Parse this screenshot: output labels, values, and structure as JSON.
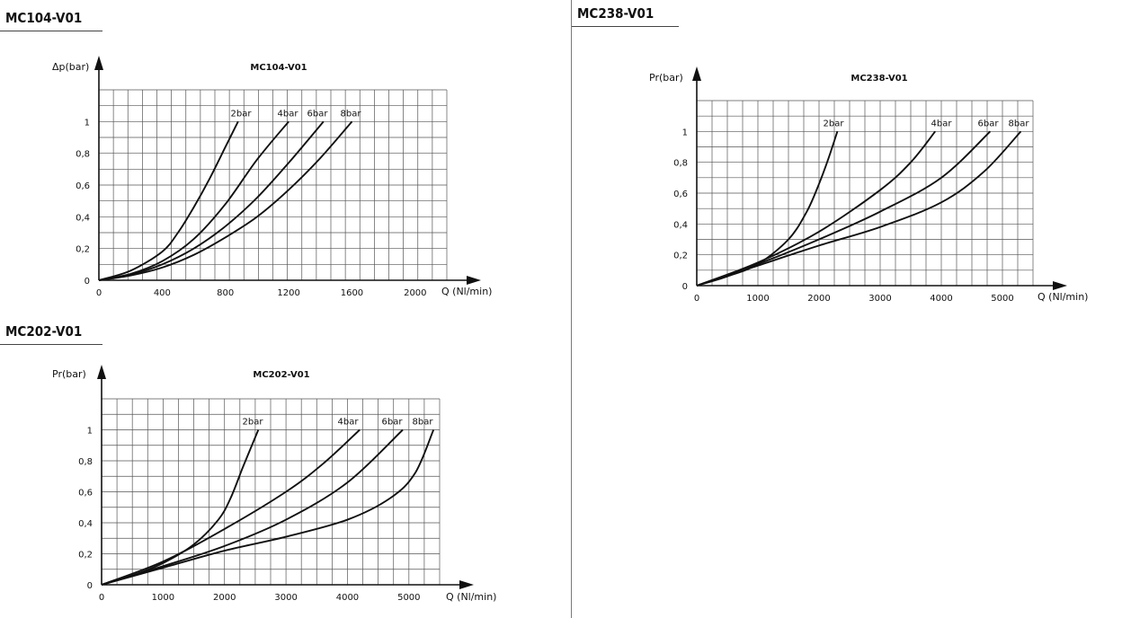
{
  "sections": [
    {
      "label": "MC104-V01"
    },
    {
      "label": "MC202-V01"
    },
    {
      "label": "MC238-V01"
    }
  ],
  "chart_data": [
    {
      "type": "line",
      "title": "MC104-V01",
      "xlabel": "Q (Nl/min)",
      "ylabel": "Δp(bar)",
      "xlim": [
        0,
        2200
      ],
      "ylim": [
        0,
        1.2
      ],
      "xticks": [
        0,
        400,
        800,
        1200,
        1600,
        2000
      ],
      "xtick_labels": [
        "0",
        "400",
        "800",
        "1200",
        "1600",
        "2000"
      ],
      "yticks": [
        0,
        0.2,
        0.4,
        0.6,
        0.8,
        1
      ],
      "ytick_labels": [
        "0",
        "0,2",
        "0,4",
        "0,6",
        "0,8",
        "1"
      ],
      "grid": true,
      "series": [
        {
          "name": "2bar",
          "x": [
            0,
            200,
            400,
            500,
            600,
            700,
            800,
            880
          ],
          "y": [
            0,
            0.06,
            0.18,
            0.3,
            0.46,
            0.64,
            0.84,
            1.0
          ]
        },
        {
          "name": "4bar",
          "x": [
            0,
            200,
            400,
            600,
            800,
            1000,
            1200
          ],
          "y": [
            0,
            0.04,
            0.12,
            0.26,
            0.48,
            0.76,
            1.0
          ]
        },
        {
          "name": "6bar",
          "x": [
            0,
            200,
            400,
            600,
            800,
            1000,
            1200,
            1420
          ],
          "y": [
            0,
            0.035,
            0.1,
            0.2,
            0.34,
            0.52,
            0.74,
            1.0
          ]
        },
        {
          "name": "8bar",
          "x": [
            0,
            200,
            400,
            600,
            800,
            1000,
            1200,
            1400,
            1600
          ],
          "y": [
            0,
            0.03,
            0.08,
            0.16,
            0.27,
            0.4,
            0.57,
            0.77,
            1.0
          ]
        }
      ]
    },
    {
      "type": "line",
      "title": "MC202-V01",
      "xlabel": "Q (Nl/min)",
      "ylabel": "Pr(bar)",
      "xlim": [
        0,
        5500
      ],
      "ylim": [
        0,
        1.2
      ],
      "xticks": [
        0,
        1000,
        2000,
        3000,
        4000,
        5000
      ],
      "xtick_labels": [
        "0",
        "1000",
        "2000",
        "3000",
        "4000",
        "5000"
      ],
      "yticks": [
        0,
        0.2,
        0.4,
        0.6,
        0.8,
        1
      ],
      "ytick_labels": [
        "0",
        "0,2",
        "0,4",
        "0,6",
        "0,8",
        "1"
      ],
      "grid": true,
      "series": [
        {
          "name": "2bar",
          "x": [
            0,
            500,
            1000,
            1500,
            1900,
            2100,
            2300,
            2550
          ],
          "y": [
            0,
            0.06,
            0.14,
            0.26,
            0.42,
            0.56,
            0.76,
            1.0
          ]
        },
        {
          "name": "4bar",
          "x": [
            0,
            1000,
            2000,
            3000,
            3600,
            4200
          ],
          "y": [
            0,
            0.15,
            0.36,
            0.6,
            0.78,
            1.0
          ]
        },
        {
          "name": "6bar",
          "x": [
            0,
            1000,
            2000,
            3000,
            4000,
            4900
          ],
          "y": [
            0,
            0.12,
            0.25,
            0.42,
            0.66,
            1.0
          ]
        },
        {
          "name": "8bar",
          "x": [
            0,
            1000,
            2000,
            3000,
            4000,
            4700,
            5100,
            5400
          ],
          "y": [
            0,
            0.11,
            0.22,
            0.31,
            0.42,
            0.56,
            0.72,
            1.0
          ]
        }
      ]
    },
    {
      "type": "line",
      "title": "MC238-V01",
      "xlabel": "Q (Nl/min)",
      "ylabel": "Pr(bar)",
      "xlim": [
        0,
        5500
      ],
      "ylim": [
        0,
        1.2
      ],
      "xticks": [
        0,
        1000,
        2000,
        3000,
        4000,
        5000
      ],
      "xtick_labels": [
        "0",
        "1000",
        "2000",
        "3000",
        "4000",
        "5000"
      ],
      "yticks": [
        0,
        0.2,
        0.4,
        0.6,
        0.8,
        1
      ],
      "ytick_labels": [
        "0",
        "0,2",
        "0,4",
        "0,6",
        "0,8",
        "1"
      ],
      "grid": true,
      "series": [
        {
          "name": "2bar",
          "x": [
            0,
            500,
            1000,
            1500,
            1800,
            2000,
            2150,
            2300
          ],
          "y": [
            0,
            0.06,
            0.14,
            0.3,
            0.48,
            0.66,
            0.82,
            1.0
          ]
        },
        {
          "name": "4bar",
          "x": [
            0,
            1000,
            2000,
            3000,
            3500,
            3900
          ],
          "y": [
            0,
            0.15,
            0.35,
            0.62,
            0.8,
            1.0
          ]
        },
        {
          "name": "6bar",
          "x": [
            0,
            1000,
            2000,
            3000,
            4000,
            4800
          ],
          "y": [
            0,
            0.14,
            0.3,
            0.48,
            0.7,
            1.0
          ]
        },
        {
          "name": "8bar",
          "x": [
            0,
            1000,
            2000,
            3000,
            4000,
            4700,
            5300
          ],
          "y": [
            0,
            0.13,
            0.26,
            0.38,
            0.54,
            0.74,
            1.0
          ]
        }
      ]
    }
  ]
}
